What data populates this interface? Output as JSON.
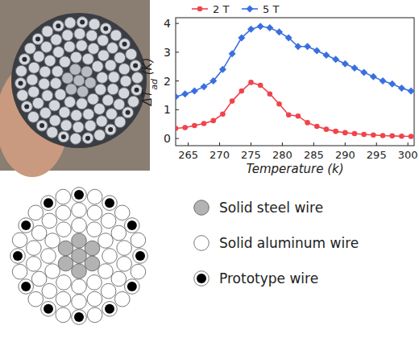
{
  "chart_data": {
    "type": "line",
    "x_label": "Temperature (k)",
    "y_label": [
      "ΔT",
      "ad",
      " (K)"
    ],
    "x": [
      263,
      264.5,
      266,
      267.5,
      269,
      270.5,
      272,
      273.5,
      275,
      276.5,
      278,
      279.5,
      281,
      282.5,
      284,
      285.5,
      287,
      288.5,
      290,
      291.5,
      293,
      294.5,
      296,
      297.5,
      299,
      300.5
    ],
    "series": [
      {
        "name": "2 T",
        "color": "#f0444c",
        "marker": "circle",
        "values": [
          0.35,
          0.38,
          0.45,
          0.52,
          0.62,
          0.85,
          1.3,
          1.65,
          1.95,
          1.85,
          1.55,
          1.2,
          0.82,
          0.78,
          0.55,
          0.42,
          0.32,
          0.25,
          0.2,
          0.17,
          0.14,
          0.12,
          0.1,
          0.09,
          0.08,
          0.07
        ]
      },
      {
        "name": "5 T",
        "color": "#3a6fe0",
        "marker": "diamond",
        "values": [
          1.45,
          1.55,
          1.65,
          1.8,
          2.0,
          2.4,
          2.95,
          3.5,
          3.8,
          3.9,
          3.85,
          3.7,
          3.5,
          3.2,
          3.2,
          3.05,
          2.9,
          2.75,
          2.6,
          2.45,
          2.3,
          2.15,
          2.0,
          1.9,
          1.75,
          1.65
        ]
      }
    ],
    "xlim": [
      263,
      301
    ],
    "xticks": [
      265,
      270,
      275,
      280,
      285,
      290,
      295,
      300
    ],
    "ylim": [
      -0.25,
      4.2
    ],
    "yticks": [
      0,
      1,
      2,
      3,
      4
    ],
    "legend": "top"
  },
  "diagram": {
    "legend": [
      {
        "label": "Solid steel wire",
        "kind": "steel"
      },
      {
        "label": "Solid aluminum wire",
        "kind": "aluminum"
      },
      {
        "label": "Prototype wire",
        "kind": "prototype"
      }
    ]
  }
}
